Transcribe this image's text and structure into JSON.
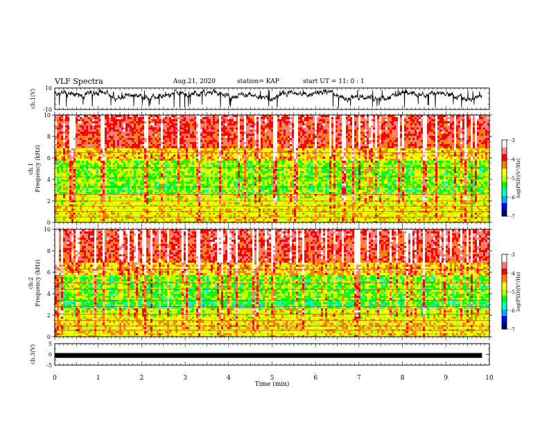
{
  "header": {
    "title": "VLF Spectra",
    "date": "Aug.21, 2020",
    "station": "station= KAP",
    "start": "start  UT =   11: 0  : 1"
  },
  "chart_data": [
    {
      "name": "ch1-waveform",
      "type": "line",
      "ylabel": "ch.1(V)",
      "ylim": [
        -10,
        10
      ],
      "yticks": [
        "10",
        "-10"
      ],
      "xlim": [
        0,
        10
      ],
      "x_end": 9.83,
      "level_min": -10,
      "level_max": 10
    },
    {
      "name": "ch1-spectrogram",
      "type": "heatmap",
      "ylabel_1": "ch.1",
      "ylabel_2": "Frequency (kHz)",
      "ylim": [
        0,
        10
      ],
      "yticks": [
        "0",
        "2",
        "4",
        "6",
        "8",
        "10"
      ],
      "xlim": [
        0,
        10
      ],
      "colorbar": {
        "label": "log(PSD)(V²/Hz)",
        "range": [
          -7,
          -3
        ],
        "ticks": [
          "-3",
          "-4",
          "-5",
          "-6",
          "-7"
        ],
        "colors": [
          "#000080",
          "#0000ff",
          "#00b0ff",
          "#00ffc0",
          "#00ff00",
          "#c0ff00",
          "#ffff00",
          "#ff8000",
          "#ff0000",
          "#ff8080",
          "#ffffff"
        ]
      }
    },
    {
      "name": "ch2-spectrogram",
      "type": "heatmap",
      "ylabel_1": "ch.2",
      "ylabel_2": "Frequency (kHz)",
      "ylim": [
        0,
        10
      ],
      "yticks": [
        "0",
        "2",
        "4",
        "6",
        "8",
        "10"
      ],
      "xlim": [
        0,
        10
      ],
      "colorbar": {
        "label": "log(PSD)(V²/Hz)",
        "range": [
          -7,
          -3
        ],
        "ticks": [
          "-3",
          "-4",
          "-5",
          "-6",
          "-7"
        ],
        "colors": [
          "#000080",
          "#0000ff",
          "#00b0ff",
          "#00ffc0",
          "#00ff00",
          "#c0ff00",
          "#ffff00",
          "#ff8000",
          "#ff0000",
          "#ff8080",
          "#ffffff"
        ]
      }
    },
    {
      "name": "ch3-waveform",
      "type": "line",
      "ylabel": "ch.3(V)",
      "ylim": [
        -5,
        5
      ],
      "yticks": [
        "5",
        "0",
        "-5"
      ],
      "xlim": [
        0,
        10
      ],
      "x_end": 9.83,
      "level": -0.5
    },
    {
      "name": "time-axis",
      "xlabel": "Time (min)",
      "xticks": [
        "0",
        "1",
        "2",
        "3",
        "4",
        "5",
        "6",
        "7",
        "8",
        "9",
        "10"
      ]
    }
  ]
}
